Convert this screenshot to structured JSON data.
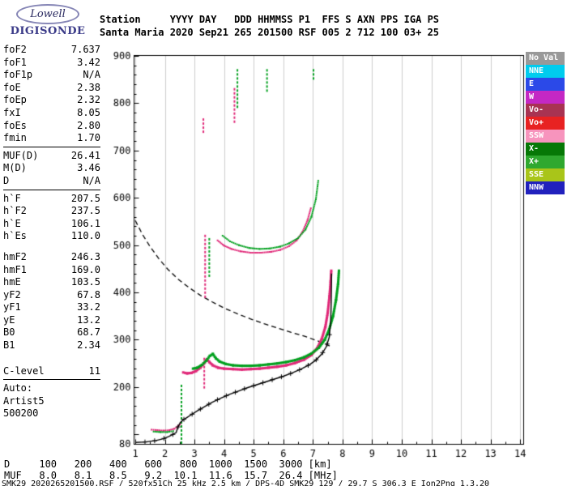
{
  "logo": {
    "top": "Lowell",
    "bottom": "DIGISONDE"
  },
  "header": {
    "line1": "Station     YYYY DAY   DDD HHMMSS P1  FFS S AXN PPS IGA PS",
    "line2": "Santa Maria 2020 Sep21 265 201500 RSF 005 2 712 100 03+ 25"
  },
  "params": {
    "groups": [
      {
        "rows": [
          [
            "foF2",
            "7.637"
          ],
          [
            "foF1",
            "3.42"
          ],
          [
            "foF1p",
            "N/A"
          ],
          [
            "foE",
            "2.38"
          ],
          [
            "foEp",
            "2.32"
          ],
          [
            "fxI",
            "8.05"
          ],
          [
            "foEs",
            "2.80"
          ],
          [
            "fmin",
            "1.70"
          ]
        ],
        "divider_after": true
      },
      {
        "rows": [
          [
            "MUF(D)",
            "26.41"
          ],
          [
            "M(D)",
            "3.46"
          ],
          [
            "D",
            "N/A"
          ]
        ],
        "divider_after": true
      },
      {
        "rows": [
          [
            "h`F",
            "207.5"
          ],
          [
            "h`F2",
            "237.5"
          ],
          [
            "h`E",
            "106.1"
          ],
          [
            "h`Es",
            "110.0"
          ]
        ],
        "divider_after": false
      },
      {
        "gap_before": 10,
        "rows": [
          [
            "hmF2",
            "246.3"
          ],
          [
            "hmF1",
            "169.0"
          ],
          [
            "hmE",
            "103.5"
          ],
          [
            "yF2",
            "67.8"
          ],
          [
            "yF1",
            "33.2"
          ],
          [
            "yE",
            "13.2"
          ],
          [
            "B0",
            "68.7"
          ],
          [
            "B1",
            "2.34"
          ]
        ],
        "divider_after": false
      },
      {
        "gap_before": 16,
        "rows": [
          [
            "C-level",
            "11"
          ]
        ],
        "divider_after": true
      },
      {
        "rows": [
          [
            "Auto:",
            ""
          ],
          [
            "Artist5",
            ""
          ],
          [
            "500200",
            ""
          ]
        ],
        "divider_after": false
      }
    ]
  },
  "legend": {
    "items": [
      {
        "label": "No Val",
        "color": "#999999"
      },
      {
        "label": "NNE",
        "color": "#00ccee"
      },
      {
        "label": "E",
        "color": "#2b49e8"
      },
      {
        "label": "W",
        "color": "#c428c4"
      },
      {
        "label": "Vo-",
        "color": "#a83352"
      },
      {
        "label": "Vo+",
        "color": "#e82222"
      },
      {
        "label": "SSW",
        "color": "#f794bd"
      },
      {
        "label": "X-",
        "color": "#067806"
      },
      {
        "label": "X+",
        "color": "#2fa82f"
      },
      {
        "label": "SSE",
        "color": "#a9c519"
      },
      {
        "label": "NNW",
        "color": "#2121bd"
      }
    ]
  },
  "bottom": {
    "d_label": "D",
    "d_unit": "[km]",
    "muf_label": "MUF",
    "muf_unit": "[MHz]"
  },
  "status_line": "SMK29_2020265201500.RSF / 520fx51Ch 25 kHz 2.5 km / DPS-4D SMK29 129 / 29.7 S 306.3 E Ion2Png 1.3.20",
  "chart_data": {
    "type": "scatter",
    "title": "Digisonde ionogram - Santa Maria 2020 Sep21 265 201500",
    "x_unit": "MHz",
    "y_unit": "km",
    "xlim": [
      1,
      14
    ],
    "ylim": [
      80,
      900
    ],
    "x_ticks": [
      1,
      2,
      3,
      4,
      5,
      6,
      7,
      8,
      9,
      10,
      11,
      12,
      13,
      14
    ],
    "y_tick_labels": [
      900,
      800,
      700,
      600,
      500,
      400,
      300,
      200,
      80
    ],
    "y_minor_step": 20,
    "grid": "vertical-only",
    "legend_position": "right",
    "colors": {
      "omode": "#e02878",
      "xmode": "#00a01e",
      "grid": "#cccccc",
      "frame": "#000000"
    },
    "traces": [
      {
        "name": "e-layer-omode",
        "color": "omode",
        "thick": false,
        "points": [
          [
            1.55,
            110
          ],
          [
            1.75,
            109
          ],
          [
            1.95,
            108
          ],
          [
            2.15,
            109
          ],
          [
            2.32,
            112
          ],
          [
            2.44,
            117
          ],
          [
            2.52,
            122
          ]
        ]
      },
      {
        "name": "e-layer-xmode",
        "color": "xmode",
        "thick": false,
        "points": [
          [
            1.62,
            106
          ],
          [
            1.85,
            105
          ],
          [
            2.08,
            105
          ],
          [
            2.28,
            107
          ]
        ]
      },
      {
        "name": "f-trace-omode",
        "color": "omode",
        "thick": true,
        "points": [
          [
            2.62,
            231
          ],
          [
            2.75,
            229
          ],
          [
            2.9,
            230
          ],
          [
            3.05,
            234
          ],
          [
            3.2,
            241
          ],
          [
            3.32,
            250
          ],
          [
            3.42,
            259
          ],
          [
            3.5,
            253
          ],
          [
            3.62,
            246
          ],
          [
            3.8,
            241
          ],
          [
            4.0,
            239
          ],
          [
            4.3,
            238
          ],
          [
            4.6,
            237
          ],
          [
            4.9,
            238
          ],
          [
            5.2,
            239
          ],
          [
            5.5,
            241
          ],
          [
            5.8,
            243
          ],
          [
            6.1,
            246
          ],
          [
            6.4,
            251
          ],
          [
            6.7,
            258
          ],
          [
            6.95,
            268
          ],
          [
            7.15,
            283
          ],
          [
            7.3,
            302
          ],
          [
            7.42,
            327
          ],
          [
            7.5,
            357
          ],
          [
            7.56,
            392
          ],
          [
            7.6,
            423
          ],
          [
            7.62,
            446
          ]
        ]
      },
      {
        "name": "f-trace-xmode",
        "color": "xmode",
        "thick": true,
        "points": [
          [
            2.95,
            239
          ],
          [
            3.1,
            241
          ],
          [
            3.25,
            247
          ],
          [
            3.4,
            256
          ],
          [
            3.52,
            266
          ],
          [
            3.62,
            270
          ],
          [
            3.72,
            261
          ],
          [
            3.85,
            254
          ],
          [
            4.05,
            249
          ],
          [
            4.3,
            246
          ],
          [
            4.6,
            245
          ],
          [
            4.9,
            245
          ],
          [
            5.2,
            246
          ],
          [
            5.5,
            248
          ],
          [
            5.8,
            250
          ],
          [
            6.1,
            253
          ],
          [
            6.4,
            257
          ],
          [
            6.7,
            263
          ],
          [
            6.95,
            271
          ],
          [
            7.2,
            283
          ],
          [
            7.4,
            300
          ],
          [
            7.55,
            322
          ],
          [
            7.68,
            350
          ],
          [
            7.78,
            384
          ],
          [
            7.85,
            418
          ],
          [
            7.88,
            446
          ]
        ]
      },
      {
        "name": "second-hop-omode",
        "color": "omode",
        "thick": false,
        "points": [
          [
            3.78,
            510
          ],
          [
            4.0,
            499
          ],
          [
            4.25,
            492
          ],
          [
            4.55,
            487
          ],
          [
            4.9,
            484
          ],
          [
            5.25,
            484
          ],
          [
            5.6,
            486
          ],
          [
            5.9,
            490
          ],
          [
            6.2,
            498
          ],
          [
            6.45,
            510
          ],
          [
            6.65,
            528
          ],
          [
            6.82,
            553
          ],
          [
            6.93,
            578
          ]
        ]
      },
      {
        "name": "second-hop-xmode",
        "color": "xmode",
        "thick": false,
        "points": [
          [
            3.95,
            520
          ],
          [
            4.2,
            508
          ],
          [
            4.5,
            500
          ],
          [
            4.85,
            494
          ],
          [
            5.2,
            492
          ],
          [
            5.55,
            493
          ],
          [
            5.9,
            497
          ],
          [
            6.2,
            504
          ],
          [
            6.5,
            515
          ],
          [
            6.75,
            533
          ],
          [
            6.95,
            560
          ],
          [
            7.1,
            597
          ],
          [
            7.18,
            636
          ]
        ]
      }
    ],
    "spread_lines": [
      {
        "name": "es-spread",
        "color": "xmode",
        "f": 2.56,
        "h1": 83,
        "h2": 205
      },
      {
        "name": "f1-spread-low",
        "color": "omode",
        "f": 3.33,
        "h1": 200,
        "h2": 262
      },
      {
        "name": "f1-spread-high",
        "color": "omode",
        "f": 3.36,
        "h1": 388,
        "h2": 522
      },
      {
        "name": "f1-spread-high-x",
        "color": "xmode",
        "f": 3.5,
        "h1": 430,
        "h2": 515
      },
      {
        "name": "hop3-o-1",
        "color": "omode",
        "f": 3.3,
        "h1": 735,
        "h2": 768
      },
      {
        "name": "hop3-o-2",
        "color": "omode",
        "f": 4.35,
        "h1": 758,
        "h2": 832
      },
      {
        "name": "hop3-x-1",
        "color": "xmode",
        "f": 4.45,
        "h1": 788,
        "h2": 872
      },
      {
        "name": "hop3-x-2",
        "color": "xmode",
        "f": 5.45,
        "h1": 828,
        "h2": 872
      },
      {
        "name": "hop3-x-3",
        "color": "xmode",
        "f": 7.02,
        "h1": 852,
        "h2": 872
      }
    ],
    "transmission_curve": {
      "name": "muf-transmission-curve",
      "style": "dashed",
      "color": "#000000",
      "points": [
        [
          1.0,
          552
        ],
        [
          1.25,
          522
        ],
        [
          1.5,
          497
        ],
        [
          1.8,
          471
        ],
        [
          2.1,
          449
        ],
        [
          2.45,
          428
        ],
        [
          2.8,
          411
        ],
        [
          3.2,
          394
        ],
        [
          3.6,
          380
        ],
        [
          4.0,
          367
        ],
        [
          4.45,
          355
        ],
        [
          4.9,
          344
        ],
        [
          5.35,
          334
        ],
        [
          5.8,
          325
        ],
        [
          6.25,
          316
        ],
        [
          6.7,
          308
        ],
        [
          7.1,
          299
        ],
        [
          7.4,
          292
        ],
        [
          7.6,
          286
        ]
      ]
    },
    "profile": {
      "name": "true-height-profile",
      "style": "solid-plus-marks",
      "color": "#000000",
      "points": [
        [
          1.0,
          83
        ],
        [
          1.35,
          84
        ],
        [
          1.7,
          87
        ],
        [
          1.95,
          91
        ],
        [
          2.15,
          96
        ],
        [
          2.3,
          101
        ],
        [
          2.38,
          104
        ],
        [
          2.44,
          115
        ],
        [
          2.52,
          125
        ],
        [
          2.62,
          131
        ],
        [
          2.75,
          136
        ],
        [
          2.9,
          142
        ],
        [
          3.1,
          150
        ],
        [
          3.35,
          159
        ],
        [
          3.6,
          168
        ],
        [
          3.9,
          177
        ],
        [
          4.2,
          185
        ],
        [
          4.5,
          192
        ],
        [
          4.8,
          199
        ],
        [
          5.1,
          205
        ],
        [
          5.4,
          211
        ],
        [
          5.7,
          217
        ],
        [
          6.0,
          223
        ],
        [
          6.3,
          230
        ],
        [
          6.6,
          238
        ],
        [
          6.9,
          248
        ],
        [
          7.1,
          257
        ],
        [
          7.3,
          270
        ],
        [
          7.45,
          285
        ],
        [
          7.55,
          305
        ],
        [
          7.6,
          338
        ],
        [
          7.62,
          380
        ],
        [
          7.63,
          440
        ]
      ]
    },
    "muf_table": {
      "distances_km": [
        "100",
        "200",
        "400",
        "600",
        "800",
        "1000",
        "1500",
        "3000"
      ],
      "muf_mhz": [
        "8.0",
        "8.1",
        "8.5",
        "9.2",
        "10.1",
        "11.6",
        "15.7",
        "26.4"
      ]
    }
  }
}
